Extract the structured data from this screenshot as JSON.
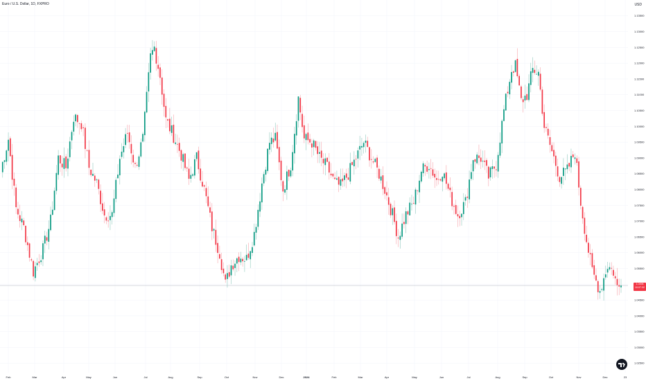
{
  "header": {
    "symbol_title": "Euro / U.S. Dollar, 1D, FXPRO",
    "currency": "USD"
  },
  "last_price": {
    "value": "1.0496",
    "countdown": "10:07:32"
  },
  "colors": {
    "up": "#089981",
    "down": "#f23645",
    "wick_up": "#8fc9bd",
    "wick_down": "#f7a3ab",
    "grid": "#f0f3fa",
    "price_line": "#d1d4dc"
  },
  "chart_data": {
    "type": "candlestick",
    "title": "Euro / U.S. Dollar, 1D, FXPRO",
    "ylabel": "USD",
    "ylim": [
      1.022,
      1.14
    ],
    "y_ticks": [
      "1.13500",
      "1.13000",
      "1.12500",
      "1.12000",
      "1.11500",
      "1.11000",
      "1.10500",
      "1.10000",
      "1.09500",
      "1.09000",
      "1.08500",
      "1.08000",
      "1.07500",
      "1.07000",
      "1.06500",
      "1.06000",
      "1.05500",
      "1.05000",
      "1.04500",
      "1.04000",
      "1.03500",
      "1.03000",
      "1.02500"
    ],
    "x_ticks": [
      "Feb",
      "Mar",
      "Apr",
      "May",
      "Jun",
      "Jul",
      "Aug",
      "Sep",
      "Oct",
      "Nov",
      "Dec",
      "2024",
      "Feb",
      "Mar",
      "Apr",
      "May",
      "Jun",
      "Jul",
      "Aug",
      "Sep",
      "Oct",
      "Nov",
      "Dec",
      "23"
    ],
    "current_price": 1.0496,
    "anchors": [
      [
        0,
        1.086
      ],
      [
        4,
        1.096
      ],
      [
        8,
        1.074
      ],
      [
        12,
        1.068
      ],
      [
        17,
        1.054
      ],
      [
        22,
        1.061
      ],
      [
        26,
        1.07
      ],
      [
        30,
        1.09
      ],
      [
        34,
        1.087
      ],
      [
        38,
        1.103
      ],
      [
        42,
        1.101
      ],
      [
        46,
        1.087
      ],
      [
        50,
        1.082
      ],
      [
        54,
        1.072
      ],
      [
        58,
        1.072
      ],
      [
        62,
        1.09
      ],
      [
        66,
        1.098
      ],
      [
        70,
        1.087
      ],
      [
        74,
        1.096
      ],
      [
        78,
        1.122
      ],
      [
        80,
        1.125
      ],
      [
        83,
        1.116
      ],
      [
        86,
        1.102
      ],
      [
        90,
        1.097
      ],
      [
        94,
        1.091
      ],
      [
        98,
        1.083
      ],
      [
        102,
        1.09
      ],
      [
        106,
        1.08
      ],
      [
        110,
        1.068
      ],
      [
        114,
        1.06
      ],
      [
        117,
        1.05
      ],
      [
        120,
        1.056
      ],
      [
        124,
        1.059
      ],
      [
        128,
        1.058
      ],
      [
        132,
        1.066
      ],
      [
        136,
        1.082
      ],
      [
        140,
        1.095
      ],
      [
        143,
        1.096
      ],
      [
        147,
        1.08
      ],
      [
        151,
        1.088
      ],
      [
        155,
        1.109
      ],
      [
        158,
        1.096
      ],
      [
        162,
        1.095
      ],
      [
        166,
        1.09
      ],
      [
        170,
        1.087
      ],
      [
        174,
        1.082
      ],
      [
        177,
        1.081
      ],
      [
        181,
        1.085
      ],
      [
        185,
        1.09
      ],
      [
        189,
        1.095
      ],
      [
        193,
        1.09
      ],
      [
        197,
        1.085
      ],
      [
        200,
        1.08
      ],
      [
        204,
        1.072
      ],
      [
        207,
        1.065
      ],
      [
        211,
        1.072
      ],
      [
        215,
        1.076
      ],
      [
        219,
        1.086
      ],
      [
        223,
        1.088
      ],
      [
        227,
        1.083
      ],
      [
        230,
        1.086
      ],
      [
        234,
        1.078
      ],
      [
        238,
        1.072
      ],
      [
        242,
        1.076
      ],
      [
        246,
        1.09
      ],
      [
        250,
        1.09
      ],
      [
        254,
        1.084
      ],
      [
        258,
        1.088
      ],
      [
        262,
        1.105
      ],
      [
        266,
        1.118
      ],
      [
        268,
        1.119
      ],
      [
        271,
        1.108
      ],
      [
        274,
        1.11
      ],
      [
        277,
        1.118
      ],
      [
        280,
        1.117
      ],
      [
        283,
        1.1
      ],
      [
        287,
        1.092
      ],
      [
        291,
        1.084
      ],
      [
        295,
        1.086
      ],
      [
        299,
        1.092
      ],
      [
        302,
        1.076
      ],
      [
        305,
        1.064
      ],
      [
        308,
        1.054
      ],
      [
        312,
        1.048
      ],
      [
        316,
        1.056
      ],
      [
        319,
        1.054
      ],
      [
        321,
        1.049
      ],
      [
        323,
        1.0496
      ]
    ]
  }
}
